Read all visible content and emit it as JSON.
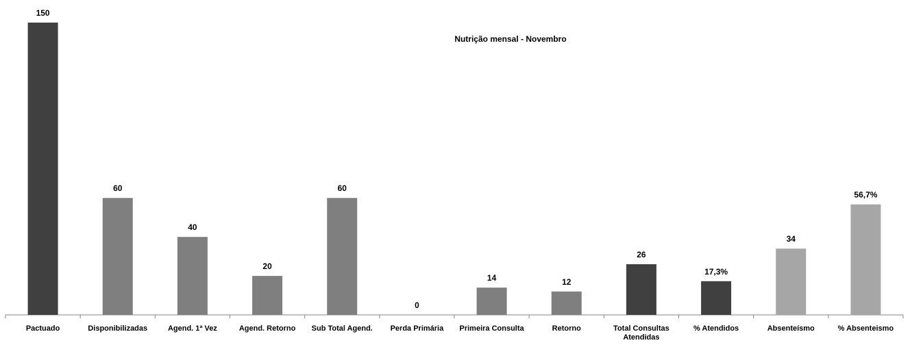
{
  "chart_data": {
    "type": "bar",
    "title": "Nutrição mensal  - Novembro",
    "categories": [
      "Pactuado",
      "Disponibilizadas",
      "Agend. 1ª Vez",
      "Agend. Retorno",
      "Sub Total Agend.",
      "Perda Primária",
      "Primeira Consulta",
      "Retorno",
      "Total Consultas Atendidas",
      "% Atendidos",
      "Absenteísmo",
      "% Absenteismo"
    ],
    "values": [
      150,
      60,
      40,
      20,
      60,
      0,
      14,
      12,
      26,
      17.3,
      34,
      56.7
    ],
    "value_labels": [
      "150",
      "60",
      "40",
      "20",
      "60",
      "0",
      "14",
      "12",
      "26",
      "17,3%",
      "34",
      "56,7%"
    ],
    "colors": [
      "#404040",
      "#7f7f7f",
      "#7f7f7f",
      "#7f7f7f",
      "#7f7f7f",
      "#7f7f7f",
      "#7f7f7f",
      "#7f7f7f",
      "#404040",
      "#404040",
      "#a6a6a6",
      "#a6a6a6"
    ],
    "ylim": [
      0,
      150
    ]
  }
}
